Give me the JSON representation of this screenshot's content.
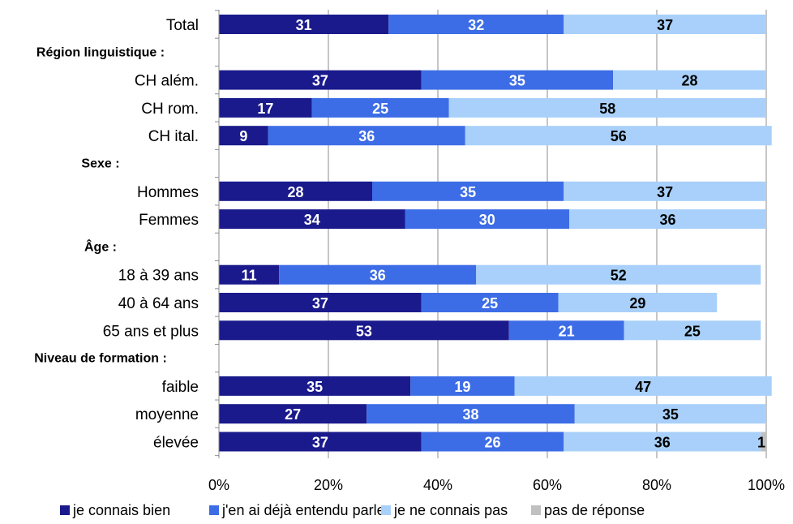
{
  "chart_data": {
    "type": "bar",
    "orientation": "horizontal-stacked-100",
    "title": "",
    "xlabel": "",
    "ylabel": "",
    "xlim": [
      0,
      100
    ],
    "x_ticks": [
      "0%",
      "20%",
      "40%",
      "60%",
      "80%",
      "100%"
    ],
    "grid": true,
    "legend_position": "bottom",
    "rows": [
      {
        "label": "Total",
        "kind": "category"
      },
      {
        "label": "Région linguistique :",
        "kind": "group"
      },
      {
        "label": "CH além.",
        "kind": "category"
      },
      {
        "label": "CH rom.",
        "kind": "category"
      },
      {
        "label": "CH ital.",
        "kind": "category"
      },
      {
        "label": "Sexe :",
        "kind": "group"
      },
      {
        "label": "Hommes",
        "kind": "category"
      },
      {
        "label": "Femmes",
        "kind": "category"
      },
      {
        "label": "Âge :",
        "kind": "group"
      },
      {
        "label": "18 à 39 ans",
        "kind": "category"
      },
      {
        "label": "40 à 64 ans",
        "kind": "category"
      },
      {
        "label": "65 ans et plus",
        "kind": "category"
      },
      {
        "label": "Niveau de formation :",
        "kind": "group"
      },
      {
        "label": "faible",
        "kind": "category"
      },
      {
        "label": "moyenne",
        "kind": "category"
      },
      {
        "label": "élevée",
        "kind": "category"
      }
    ],
    "categories": [
      "Total",
      "CH além.",
      "CH rom.",
      "CH ital.",
      "Hommes",
      "Femmes",
      "18 à 39 ans",
      "40 à 64 ans",
      "65 ans et plus",
      "faible",
      "moyenne",
      "élevée"
    ],
    "series": [
      {
        "name": "je connais bien",
        "color": "#1a1a8c",
        "label_color": "#ffffff",
        "values": [
          31,
          37,
          17,
          9,
          28,
          34,
          11,
          37,
          53,
          35,
          27,
          37
        ]
      },
      {
        "name": "j'en ai déjà entendu parler",
        "color": "#3d6de6",
        "label_color": "#ffffff",
        "values": [
          32,
          35,
          25,
          36,
          35,
          30,
          36,
          25,
          21,
          19,
          38,
          26
        ]
      },
      {
        "name": "je ne connais pas",
        "color": "#a8d0fa",
        "label_color": "#000000",
        "values": [
          37,
          28,
          58,
          56,
          37,
          36,
          52,
          29,
          25,
          47,
          35,
          36
        ]
      },
      {
        "name": "pas de réponse",
        "color": "#c0c0c0",
        "label_color": "#000000",
        "values": [
          0,
          0,
          0,
          0,
          0,
          0,
          0,
          0,
          0,
          0,
          0,
          1
        ]
      }
    ]
  }
}
